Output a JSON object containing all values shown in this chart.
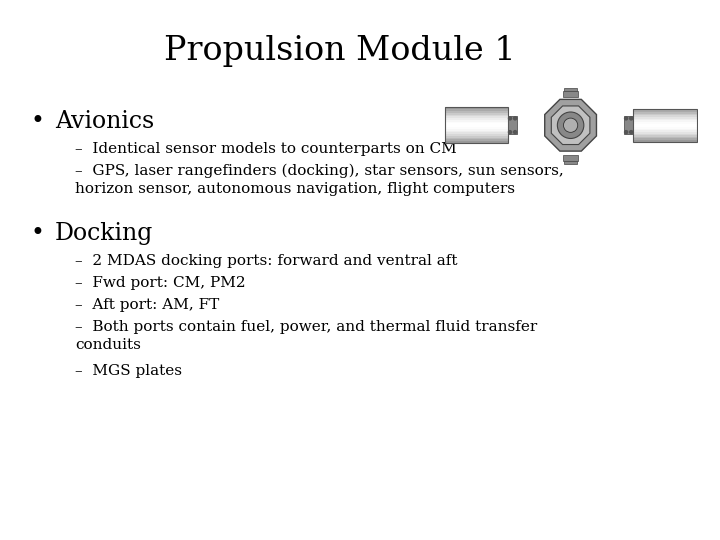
{
  "title": "Propulsion Module 1",
  "title_fontsize": 24,
  "background_color": "#ffffff",
  "text_color": "#000000",
  "bullet1": "Avionics",
  "bullet1_fontsize": 17,
  "bullet1_sub": [
    "Identical sensor models to counterparts on CM",
    "GPS, laser rangefinders (docking), star sensors, sun sensors,\nhorizon sensor, autonomous navigation, flight computers"
  ],
  "bullet2": "Docking",
  "bullet2_fontsize": 17,
  "bullet2_sub": [
    "2 MDAS docking ports: forward and ventral aft",
    "Fwd port: CM, PM2",
    "Aft port: AM, FT",
    "Both ports contain fuel, power, and thermal fluid transfer\nconduits",
    "MGS plates"
  ],
  "sub_fontsize": 11,
  "font": "DejaVu Serif"
}
